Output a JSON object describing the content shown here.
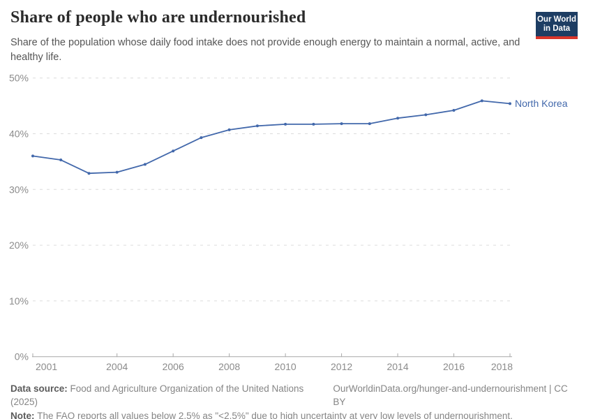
{
  "header": {
    "title": "Share of people who are undernourished",
    "subtitle": "Share of the population whose daily food intake does not provide enough energy to maintain a normal, active, and healthy life.",
    "logo": {
      "line1": "Our World",
      "line2": "in Data"
    }
  },
  "chart_data": {
    "type": "line",
    "title": "Share of people who are undernourished",
    "entity": "North Korea",
    "x": [
      2001,
      2002,
      2003,
      2004,
      2005,
      2006,
      2007,
      2008,
      2009,
      2010,
      2011,
      2012,
      2013,
      2014,
      2015,
      2016,
      2017,
      2018
    ],
    "series": [
      {
        "name": "North Korea",
        "color": "#4268ab",
        "values": [
          36.0,
          35.3,
          32.9,
          33.1,
          34.5,
          36.9,
          39.3,
          40.7,
          41.4,
          41.7,
          41.7,
          41.8,
          41.8,
          42.8,
          43.4,
          44.2,
          45.9,
          45.4
        ]
      }
    ],
    "xlabel": "",
    "ylabel": "",
    "xlim": [
      2001,
      2018
    ],
    "ylim": [
      0,
      50
    ],
    "x_ticks": [
      2001,
      2004,
      2006,
      2008,
      2010,
      2012,
      2014,
      2016,
      2018
    ],
    "x_tick_labels": [
      "2001",
      "2004",
      "2006",
      "2008",
      "2010",
      "2012",
      "2014",
      "2016",
      "2018"
    ],
    "y_ticks": [
      0,
      10,
      20,
      30,
      40,
      50
    ],
    "y_tick_labels": [
      "0%",
      "10%",
      "20%",
      "30%",
      "40%",
      "50%"
    ],
    "grid": "horizontal-dashed",
    "legend_position": "end-of-line"
  },
  "footer": {
    "source_label": "Data source:",
    "source_text": "Food and Agriculture Organization of the United Nations (2025)",
    "link_text": "OurWorldinData.org/hunger-and-undernourishment | CC BY",
    "note_label": "Note:",
    "note_text": "The FAO reports all values below 2.5% as \"<2.5%\" due to high uncertainty at very low levels of undernourishment."
  },
  "colors": {
    "line": "#4268ab",
    "series_label": "#4268ab",
    "grid": "#dcdcdc",
    "axis": "#a8a8a8",
    "tick_label": "#8b8b8b",
    "logo_bg": "#1d3d63",
    "logo_accent": "#d8352a"
  }
}
